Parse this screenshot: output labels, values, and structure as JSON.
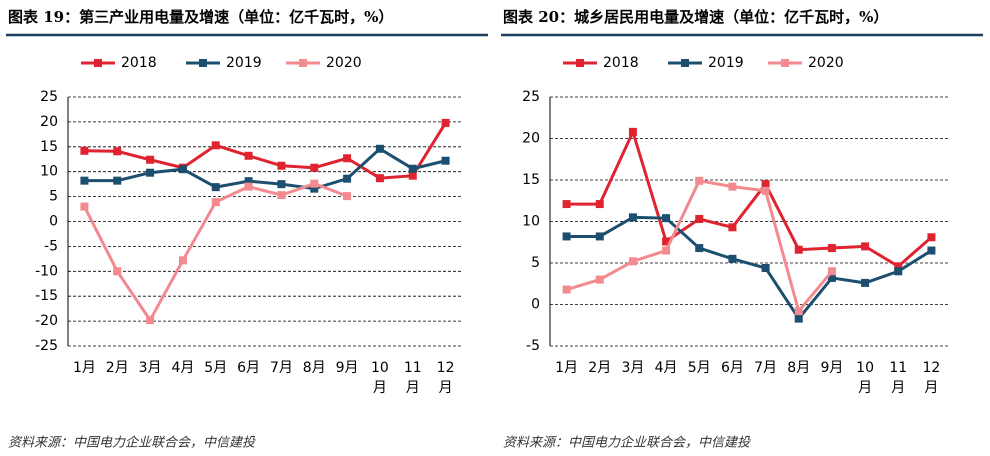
{
  "chart_data": [
    {
      "type": "line",
      "title": "图表 19：第三产业用电量及增速（单位：亿千瓦时，%）",
      "source": "资料来源：中国电力企业联合会，中信建投",
      "categories": [
        "1月",
        "2月",
        "3月",
        "4月",
        "5月",
        "6月",
        "7月",
        "8月",
        "9月",
        "10月",
        "11月",
        "12月"
      ],
      "series": [
        {
          "name": "2018",
          "color": "#df2330",
          "values": [
            14.2,
            14.1,
            12.4,
            10.8,
            15.3,
            13.2,
            11.2,
            10.8,
            12.7,
            8.7,
            9.2,
            19.8
          ]
        },
        {
          "name": "2019",
          "color": "#1c4f6f",
          "values": [
            8.2,
            8.2,
            9.8,
            10.5,
            6.9,
            8.1,
            7.5,
            6.6,
            8.6,
            14.6,
            10.6,
            12.2
          ]
        },
        {
          "name": "2020",
          "color": "#f28a90",
          "values": [
            3,
            -10,
            -19.8,
            -7.8,
            3.9,
            7,
            5.3,
            7.6,
            5.1,
            null,
            null,
            null
          ]
        }
      ],
      "ylim": [
        -25,
        25
      ],
      "yticks": [
        -25,
        -20,
        -15,
        -10,
        -5,
        0,
        5,
        10,
        15,
        20,
        25
      ],
      "grid": true,
      "legend": "top"
    },
    {
      "type": "line",
      "title": "图表 20：城乡居民用电量及增速（单位：亿千瓦时，%）",
      "source": "资料来源：中国电力企业联合会，中信建投",
      "categories": [
        "1月",
        "2月",
        "3月",
        "4月",
        "5月",
        "6月",
        "7月",
        "8月",
        "9月",
        "10月",
        "11月",
        "12月"
      ],
      "series": [
        {
          "name": "2018",
          "color": "#df2330",
          "values": [
            12.1,
            12.1,
            20.8,
            7.6,
            10.3,
            9.3,
            14.5,
            6.6,
            6.8,
            7,
            4.6,
            8.1
          ]
        },
        {
          "name": "2019",
          "color": "#1c4f6f",
          "values": [
            8.2,
            8.2,
            10.5,
            10.4,
            6.8,
            5.5,
            4.4,
            -1.7,
            3.2,
            2.6,
            4,
            6.5
          ]
        },
        {
          "name": "2020",
          "color": "#f28a90",
          "values": [
            1.8,
            3,
            5.2,
            6.5,
            14.9,
            14.2,
            13.7,
            -0.8,
            4,
            null,
            null,
            null
          ]
        }
      ],
      "ylim": [
        -5,
        25
      ],
      "yticks": [
        -5,
        0,
        5,
        10,
        15,
        20,
        25
      ],
      "grid": true,
      "legend": "top"
    }
  ]
}
